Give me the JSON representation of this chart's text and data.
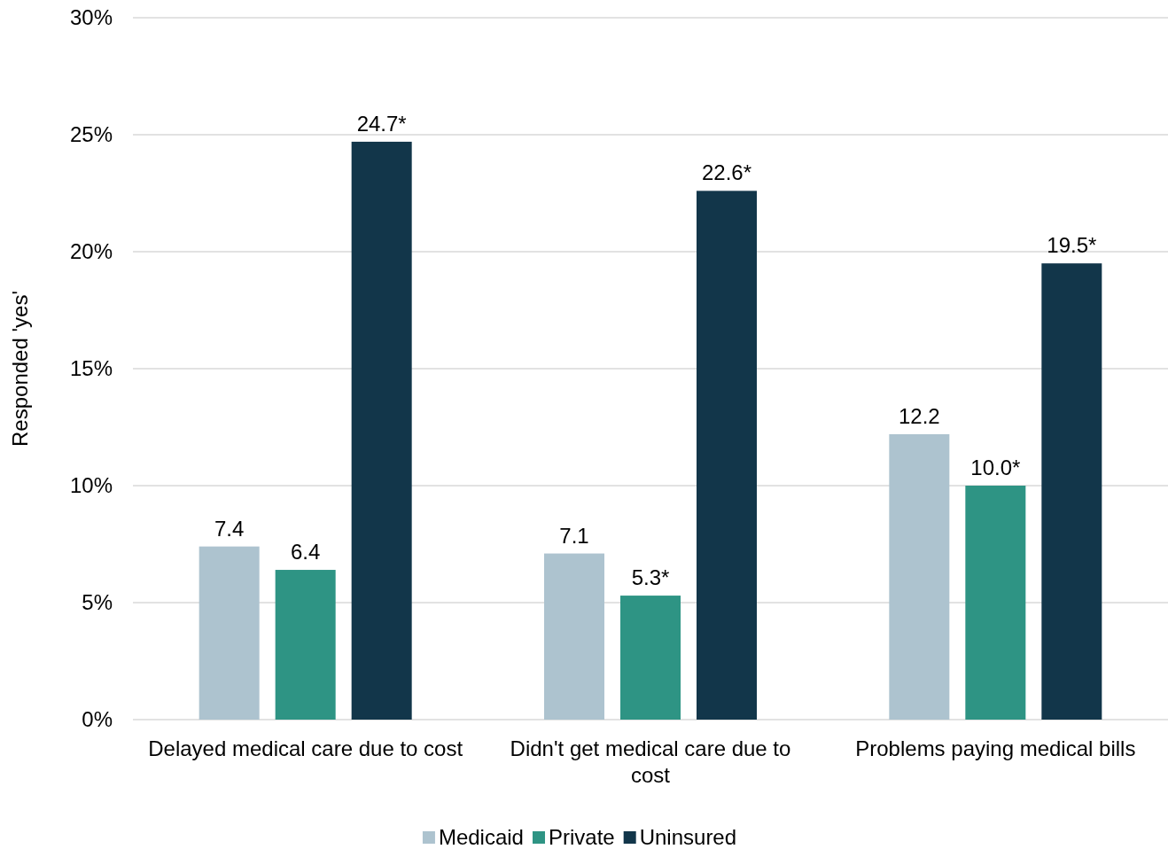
{
  "chart_data": {
    "type": "bar",
    "ylabel": "Responded 'yes'",
    "categories": [
      "Delayed medical care due to cost",
      "Didn't get medical care due to cost",
      "Problems paying medical bills"
    ],
    "series": [
      {
        "name": "Medicaid",
        "color": "#adc3cf",
        "values": [
          7.4,
          7.1,
          12.2
        ],
        "value_labels": [
          "7.4",
          "7.1",
          "12.2"
        ]
      },
      {
        "name": "Private",
        "color": "#2e9484",
        "values": [
          6.4,
          5.3,
          10.0
        ],
        "value_labels": [
          "6.4",
          "5.3*",
          "10.0*"
        ]
      },
      {
        "name": "Uninsured",
        "color": "#12364a",
        "values": [
          24.7,
          22.6,
          19.5
        ],
        "value_labels": [
          "24.7*",
          "22.6*",
          "19.5*"
        ]
      }
    ],
    "ylim": [
      0,
      30
    ],
    "yticks": [
      {
        "value": 0,
        "label": "0%"
      },
      {
        "value": 5,
        "label": "5%"
      },
      {
        "value": 10,
        "label": "10%"
      },
      {
        "value": 15,
        "label": "15%"
      },
      {
        "value": 20,
        "label": "20%"
      },
      {
        "value": 25,
        "label": "25%"
      },
      {
        "value": 30,
        "label": "30%"
      }
    ],
    "grid": "y",
    "legend": "bottom"
  }
}
